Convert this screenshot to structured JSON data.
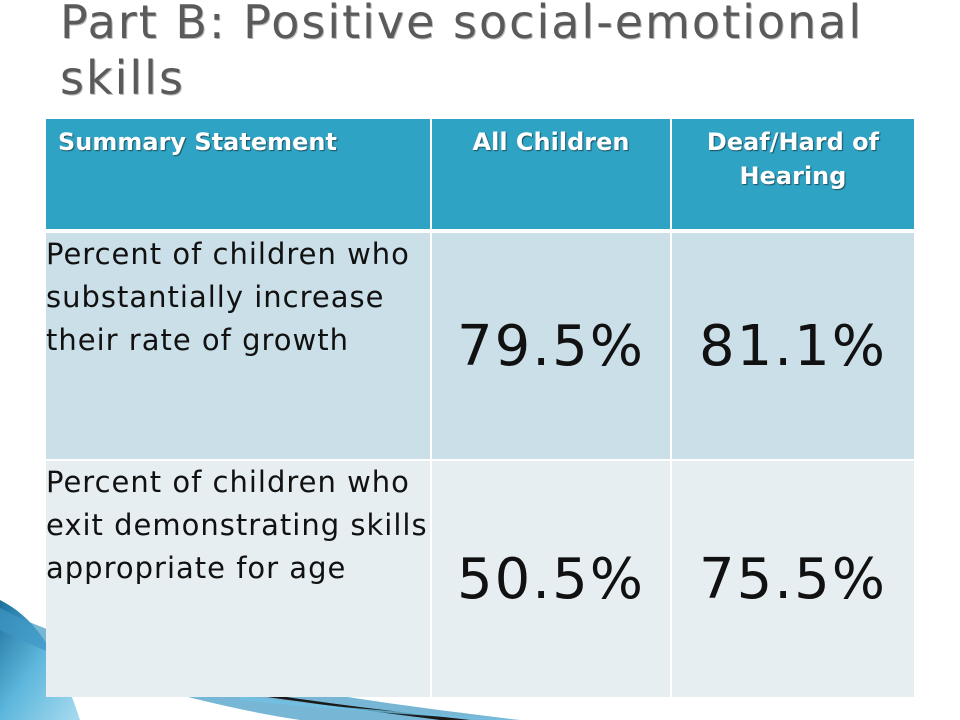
{
  "slide": {
    "title_line1": "Part B:  Positive social-emotional",
    "title_line2": "skills"
  },
  "table": {
    "headers": [
      "Summary Statement",
      "All Children",
      "Deaf/Hard of Hearing"
    ],
    "rows": [
      {
        "statement": "Percent of children who substantially increase their rate of growth",
        "all_children": "79.5%",
        "deaf_hard_of_hearing": "81.1%"
      },
      {
        "statement": "Percent of children who exit demonstrating skills appropriate for age",
        "all_children": "50.5%",
        "deaf_hard_of_hearing": "75.5%"
      }
    ]
  },
  "colors": {
    "header_bg": "#2ea3c4",
    "row1_bg": "#cadfe8",
    "row2_bg": "#e6eef2",
    "title_text": "#5a5a5a"
  }
}
